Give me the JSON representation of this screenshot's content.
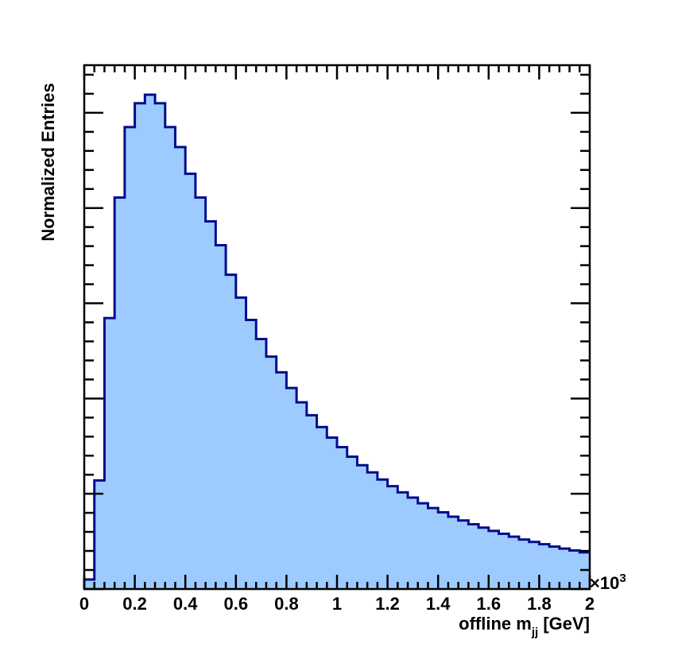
{
  "chart_data": {
    "type": "bar",
    "style": "filled-step-histogram",
    "fill_color": "#9ecbff",
    "line_color": "#000c8c",
    "xlabel": "offline m",
    "xlabel_subscript": "jj",
    "xlabel_unit": "[GeV]",
    "ylabel": "Normalized Entries",
    "exponent_label": "×10",
    "exponent_power": "3",
    "xlim": [
      0,
      2
    ],
    "x_ticks": [
      "0",
      "0.2",
      "0.4",
      "0.6",
      "0.8",
      "1",
      "1.2",
      "1.4",
      "1.6",
      "1.8",
      "2"
    ],
    "y_tick_labels_shown": false,
    "bin_width": 0.04,
    "x_edges_start": 0,
    "values": [
      0.02,
      0.228,
      0.569,
      0.822,
      0.97,
      1.02,
      1.038,
      1.02,
      0.97,
      0.928,
      0.872,
      0.822,
      0.772,
      0.722,
      0.66,
      0.612,
      0.565,
      0.525,
      0.488,
      0.455,
      0.422,
      0.392,
      0.365,
      0.34,
      0.318,
      0.298,
      0.278,
      0.26,
      0.245,
      0.23,
      0.216,
      0.203,
      0.192,
      0.18,
      0.17,
      0.161,
      0.152,
      0.144,
      0.136,
      0.129,
      0.122,
      0.116,
      0.11,
      0.104,
      0.099,
      0.094,
      0.089,
      0.085,
      0.081,
      0.077
    ],
    "ylim": [
      0,
      1.1
    ]
  }
}
